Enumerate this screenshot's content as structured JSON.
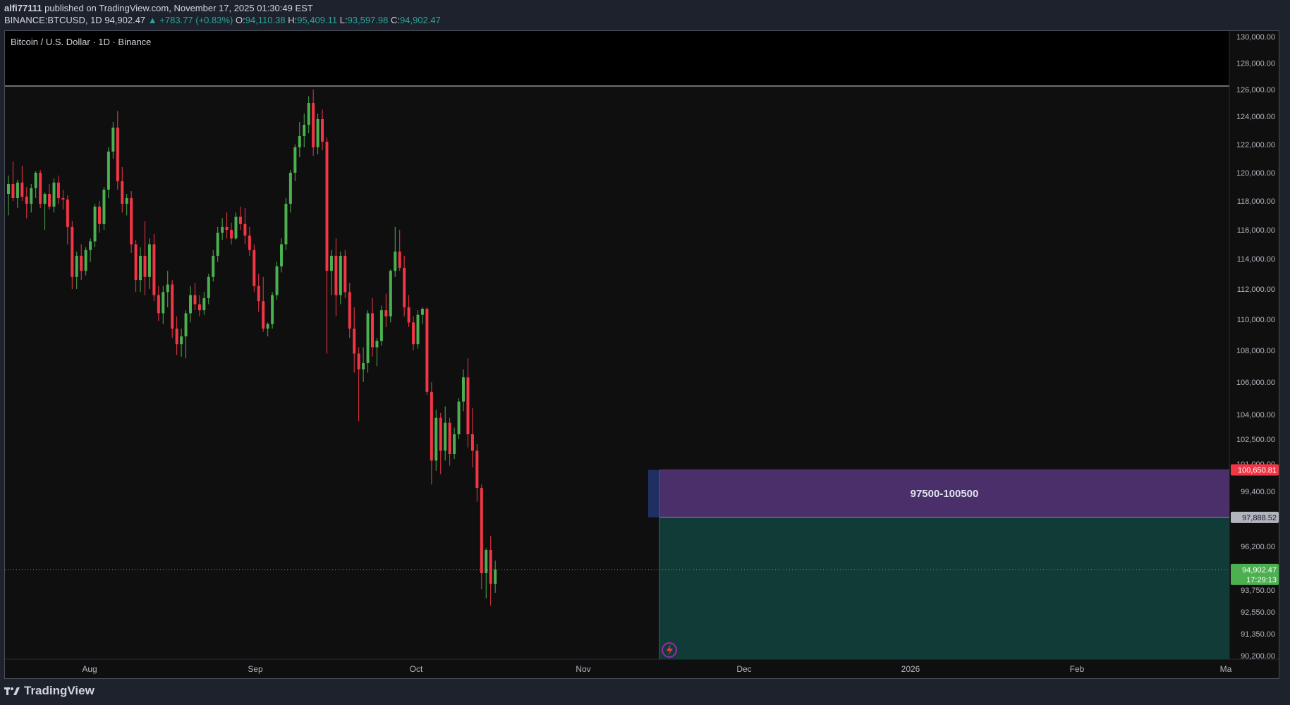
{
  "header": {
    "author": "alfi77111",
    "published_text": "published on TradingView.com, November 17, 2025 01:30:49 EST",
    "symbol_interval": "BINANCE:BTCUSD, 1D",
    "last_price": "94,902.47",
    "change_text": "▲ +783.77 (+0.83%)",
    "open_label": "O:",
    "open_value": "94,110.38",
    "high_label": "H:",
    "high_value": "95,409.11",
    "low_label": "L:",
    "low_value": "93,597.98",
    "close_label": "C:",
    "close_value": "94,902.47"
  },
  "chart_title": "Bitcoin / U.S. Dollar · 1D · Binance",
  "footer": {
    "brand": "TradingView"
  },
  "colors": {
    "up": "#26a69a",
    "down": "#f23645",
    "candle_up": "#4caf50",
    "zone_purple": "#4a2f6b",
    "zone_teal": "#103b37",
    "background": "#0f0f0f",
    "axis_bg": "#1e222d"
  },
  "chart_data": {
    "type": "candlestick",
    "price_scale": {
      "labels": [
        "130,000.00",
        "128,000.00",
        "126,000.00",
        "124,000.00",
        "122,000.00",
        "120,000.00",
        "118,000.00",
        "116,000.00",
        "114,000.00",
        "112,000.00",
        "110,000.00",
        "108,000.00",
        "106,000.00",
        "104,000.00",
        "102,500.00",
        "101,000.00",
        "99,400.00",
        "96,200.00",
        "93,750.00",
        "92,550.00",
        "91,350.00",
        "90,200.00"
      ],
      "badges": [
        {
          "text": "100,650.81",
          "color": "#f23645",
          "value": 100650.81
        },
        {
          "text": "97,888.52",
          "color": "#b2b5be",
          "value": 97888.52
        },
        {
          "text": "94,902.47",
          "sub": "17:29:13",
          "color": "#4caf50",
          "value": 94902.47
        }
      ]
    },
    "time_labels": [
      "Aug",
      "Sep",
      "Oct",
      "Nov",
      "Dec",
      "2026",
      "Feb",
      "Ma"
    ],
    "zone": {
      "label": "97500-100500",
      "top": 100650.81,
      "mid": 97888.52,
      "bottom": 90200
    },
    "candles": [
      [
        118500,
        119800,
        117000,
        119200
      ],
      [
        119200,
        120800,
        118000,
        118200
      ],
      [
        118200,
        119500,
        117500,
        119300
      ],
      [
        119300,
        120500,
        118000,
        118300
      ],
      [
        118300,
        119000,
        116800,
        117800
      ],
      [
        117800,
        119200,
        117200,
        118900
      ],
      [
        118900,
        120100,
        118200,
        120000
      ],
      [
        120000,
        120200,
        117500,
        117800
      ],
      [
        117800,
        118600,
        116000,
        118500
      ],
      [
        118500,
        119200,
        117400,
        117600
      ],
      [
        117600,
        119600,
        117200,
        119300
      ],
      [
        119300,
        119800,
        117800,
        118200
      ],
      [
        118200,
        118800,
        117400,
        118100
      ],
      [
        118100,
        118400,
        115000,
        116200
      ],
      [
        116200,
        116600,
        112000,
        112800
      ],
      [
        112800,
        114500,
        112000,
        114200
      ],
      [
        114200,
        115000,
        112600,
        113200
      ],
      [
        113200,
        114800,
        112900,
        114600
      ],
      [
        114600,
        115400,
        113800,
        115200
      ],
      [
        115200,
        117800,
        114800,
        117600
      ],
      [
        117600,
        118000,
        115800,
        116400
      ],
      [
        116400,
        119000,
        116000,
        118800
      ],
      [
        118800,
        121800,
        118200,
        121500
      ],
      [
        121500,
        123600,
        121000,
        123200
      ],
      [
        123200,
        124400,
        118800,
        119400
      ],
      [
        119400,
        120400,
        117200,
        117800
      ],
      [
        117800,
        118500,
        117000,
        118200
      ],
      [
        118200,
        118700,
        114400,
        115000
      ],
      [
        115000,
        115300,
        111800,
        112600
      ],
      [
        112600,
        114800,
        111800,
        114200
      ],
      [
        114200,
        116600,
        111600,
        112800
      ],
      [
        112800,
        115400,
        112000,
        115000
      ],
      [
        115000,
        115700,
        111200,
        111600
      ],
      [
        111600,
        112200,
        109900,
        110400
      ],
      [
        110400,
        112200,
        109700,
        111800
      ],
      [
        111800,
        113200,
        110800,
        112300
      ],
      [
        112300,
        112600,
        108800,
        109400
      ],
      [
        109400,
        110200,
        107700,
        108400
      ],
      [
        108400,
        109400,
        107600,
        108900
      ],
      [
        108900,
        110600,
        107500,
        110400
      ],
      [
        110400,
        112200,
        109800,
        111600
      ],
      [
        111600,
        112400,
        110600,
        111000
      ],
      [
        111000,
        111600,
        110200,
        110600
      ],
      [
        110600,
        111800,
        110300,
        111400
      ],
      [
        111400,
        113000,
        111000,
        112800
      ],
      [
        112800,
        114600,
        112500,
        114200
      ],
      [
        114200,
        116200,
        113800,
        115800
      ],
      [
        115800,
        116800,
        115300,
        116200
      ],
      [
        116200,
        117200,
        115400,
        116000
      ],
      [
        116000,
        116500,
        115000,
        115400
      ],
      [
        115400,
        117200,
        115300,
        116900
      ],
      [
        116900,
        117600,
        116000,
        116400
      ],
      [
        116400,
        117500,
        115000,
        115600
      ],
      [
        115600,
        116200,
        114200,
        114600
      ],
      [
        114600,
        115000,
        111800,
        112200
      ],
      [
        112200,
        113000,
        110500,
        111200
      ],
      [
        111200,
        112800,
        109200,
        109400
      ],
      [
        109400,
        109800,
        108900,
        109700
      ],
      [
        109700,
        111800,
        109400,
        111600
      ],
      [
        111600,
        113800,
        111300,
        113500
      ],
      [
        113500,
        115400,
        113100,
        115000
      ],
      [
        115000,
        118200,
        114600,
        117800
      ],
      [
        117800,
        120200,
        117200,
        120000
      ],
      [
        120000,
        122000,
        119400,
        121800
      ],
      [
        121800,
        123600,
        121100,
        122600
      ],
      [
        122600,
        124200,
        121800,
        123400
      ],
      [
        123400,
        125500,
        122800,
        125000
      ],
      [
        125000,
        126000,
        121200,
        121800
      ],
      [
        121800,
        124200,
        121300,
        123800
      ],
      [
        123800,
        124500,
        121600,
        122200
      ],
      [
        122200,
        122500,
        107800,
        113200
      ],
      [
        113200,
        114600,
        111600,
        114200
      ],
      [
        114200,
        115400,
        110200,
        111600
      ],
      [
        111600,
        114500,
        111000,
        114200
      ],
      [
        114200,
        114600,
        111400,
        111800
      ],
      [
        111800,
        112400,
        108800,
        109400
      ],
      [
        109400,
        110800,
        106600,
        107800
      ],
      [
        107800,
        108200,
        103600,
        106800
      ],
      [
        106800,
        108200,
        106000,
        107200
      ],
      [
        107200,
        110600,
        106600,
        110400
      ],
      [
        110400,
        111400,
        107600,
        108200
      ],
      [
        108200,
        108800,
        107000,
        108600
      ],
      [
        108600,
        110900,
        108300,
        110600
      ],
      [
        110600,
        111700,
        109500,
        110200
      ],
      [
        110200,
        113300,
        109800,
        113200
      ],
      [
        113200,
        116200,
        112800,
        114500
      ],
      [
        114500,
        116000,
        113200,
        113400
      ],
      [
        113400,
        114200,
        110200,
        110800
      ],
      [
        110800,
        111600,
        109500,
        109800
      ],
      [
        109800,
        110200,
        108000,
        108400
      ],
      [
        108400,
        110600,
        108100,
        110300
      ],
      [
        110300,
        110800,
        109700,
        110700
      ],
      [
        110700,
        110800,
        105200,
        105400
      ],
      [
        105400,
        106000,
        99800,
        101200
      ],
      [
        101200,
        104300,
        100600,
        103800
      ],
      [
        103800,
        104100,
        100400,
        101800
      ],
      [
        101800,
        104500,
        101200,
        103500
      ],
      [
        103500,
        103800,
        100900,
        101600
      ],
      [
        101600,
        103200,
        101300,
        102800
      ],
      [
        102800,
        105000,
        102500,
        104800
      ],
      [
        104800,
        106800,
        104200,
        106300
      ],
      [
        106300,
        107500,
        102000,
        102800
      ],
      [
        102800,
        104400,
        100800,
        101800
      ],
      [
        101800,
        102200,
        98800,
        99600
      ],
      [
        99600,
        99800,
        93800,
        94700
      ],
      [
        94700,
        96100,
        93300,
        96000
      ],
      [
        96000,
        96800,
        92900,
        94100
      ],
      [
        94100,
        95400,
        93600,
        94900
      ]
    ]
  }
}
